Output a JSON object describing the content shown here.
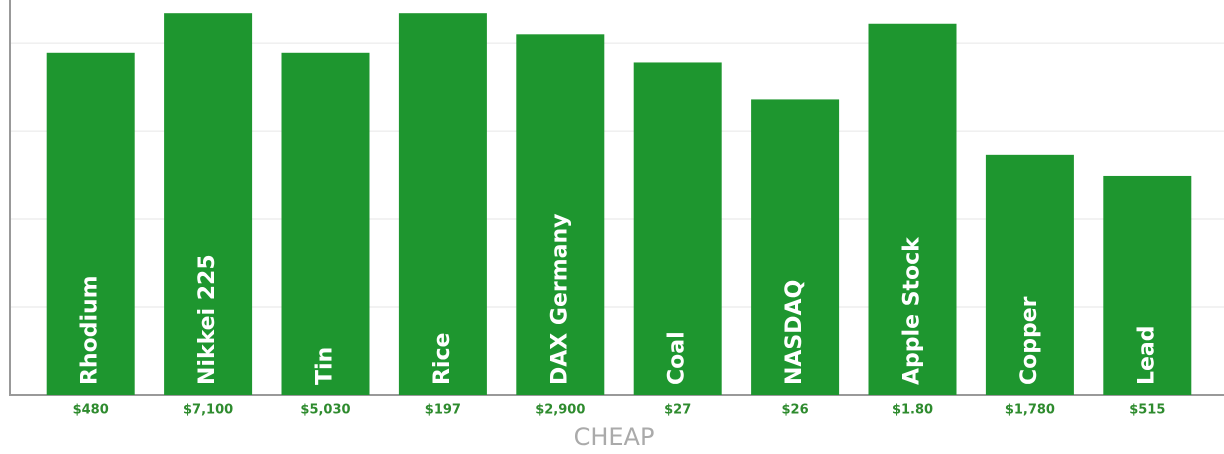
{
  "chart_data": {
    "type": "bar",
    "xlabel": "CHEAP",
    "categories": [
      "Rhodium",
      "Nikkei 225",
      "Tin",
      "Rice",
      "DAX Germany",
      "Coal",
      "NASDAQ",
      "Apple Stock",
      "Copper",
      "Lead"
    ],
    "prices": [
      "$480",
      "$7,100",
      "$5,030",
      "$197",
      "$2,900",
      "$27",
      "$26",
      "$1.80",
      "$1,780",
      "$515"
    ],
    "values": [
      3.89,
      4.34,
      3.89,
      4.34,
      4.1,
      3.78,
      3.36,
      4.22,
      2.73,
      2.49
    ],
    "color": "#1e962f",
    "ylim": [
      0,
      4.49
    ],
    "yticks": [
      0,
      1,
      2,
      3,
      4
    ],
    "grid": true
  }
}
